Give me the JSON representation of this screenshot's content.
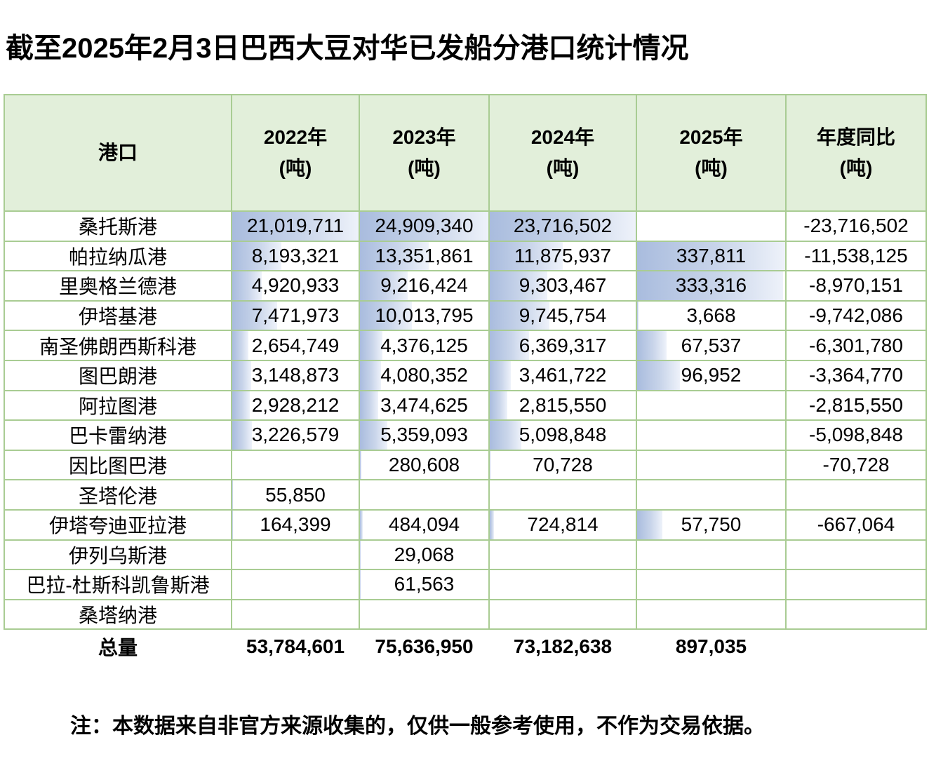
{
  "title": "截至2025年2月3日巴西大豆对华已发船分港口统计情况",
  "note": "注：本数据来自非官方来源收集的，仅供一般参考使用，不作为交易依据。",
  "colors": {
    "header_bg": "#e2efda",
    "grid_border": "#a9cc93",
    "databar_start": "#a9bcde",
    "databar_end": "#eef2fa"
  },
  "table": {
    "headers": [
      {
        "line1": "港口",
        "line2": ""
      },
      {
        "line1": "2022年",
        "line2": "(吨)"
      },
      {
        "line1": "2023年",
        "line2": "(吨)"
      },
      {
        "line1": "2024年",
        "line2": "(吨)"
      },
      {
        "line1": "2025年",
        "line2": "(吨)"
      },
      {
        "line1": "年度同比",
        "line2": "(吨)"
      }
    ],
    "rows": [
      {
        "port": "桑托斯港",
        "y2022": "21,019,711",
        "y2023": "24,909,340",
        "y2024": "23,716,502",
        "y2025": "",
        "yoy": "-23,716,502"
      },
      {
        "port": "帕拉纳瓜港",
        "y2022": "8,193,321",
        "y2023": "13,351,861",
        "y2024": "11,875,937",
        "y2025": "337,811",
        "yoy": "-11,538,125"
      },
      {
        "port": "里奥格兰德港",
        "y2022": "4,920,933",
        "y2023": "9,216,424",
        "y2024": "9,303,467",
        "y2025": "333,316",
        "yoy": "-8,970,151"
      },
      {
        "port": "伊塔基港",
        "y2022": "7,471,973",
        "y2023": "10,013,795",
        "y2024": "9,745,754",
        "y2025": "3,668",
        "yoy": "-9,742,086"
      },
      {
        "port": "南圣佛朗西斯科港",
        "y2022": "2,654,749",
        "y2023": "4,376,125",
        "y2024": "6,369,317",
        "y2025": "67,537",
        "yoy": "-6,301,780"
      },
      {
        "port": "图巴朗港",
        "y2022": "3,148,873",
        "y2023": "4,080,352",
        "y2024": "3,461,722",
        "y2025": "96,952",
        "yoy": "-3,364,770"
      },
      {
        "port": "阿拉图港",
        "y2022": "2,928,212",
        "y2023": "3,474,625",
        "y2024": "2,815,550",
        "y2025": "",
        "yoy": "-2,815,550"
      },
      {
        "port": "巴卡雷纳港",
        "y2022": "3,226,579",
        "y2023": "5,359,093",
        "y2024": "5,098,848",
        "y2025": "",
        "yoy": "-5,098,848"
      },
      {
        "port": "因比图巴港",
        "y2022": "",
        "y2023": "280,608",
        "y2024": "70,728",
        "y2025": "",
        "yoy": "-70,728"
      },
      {
        "port": "圣塔伦港",
        "y2022": "55,850",
        "y2023": "",
        "y2024": "",
        "y2025": "",
        "yoy": ""
      },
      {
        "port": "伊塔夸迪亚拉港",
        "y2022": "164,399",
        "y2023": "484,094",
        "y2024": "724,814",
        "y2025": "57,750",
        "yoy": "-667,064"
      },
      {
        "port": "伊列乌斯港",
        "y2022": "",
        "y2023": "29,068",
        "y2024": "",
        "y2025": "",
        "yoy": ""
      },
      {
        "port": "巴拉-杜斯科凯鲁斯港",
        "y2022": "",
        "y2023": "61,563",
        "y2024": "",
        "y2025": "",
        "yoy": ""
      },
      {
        "port": "桑塔纳港",
        "y2022": "",
        "y2023": "",
        "y2024": "",
        "y2025": "",
        "yoy": ""
      }
    ],
    "total": {
      "label": "总量",
      "y2022": "53,784,601",
      "y2023": "75,636,950",
      "y2024": "73,182,638",
      "y2025": "897,035",
      "yoy": ""
    }
  },
  "chart_data": {
    "type": "table",
    "title": "截至2025年2月3日巴西大豆对华已发船分港口统计情况",
    "columns": [
      "港口",
      "2022年(吨)",
      "2023年(吨)",
      "2024年(吨)",
      "2025年(吨)",
      "年度同比(吨)"
    ],
    "rows": [
      [
        "桑托斯港",
        21019711,
        24909340,
        23716502,
        null,
        -23716502
      ],
      [
        "帕拉纳瓜港",
        8193321,
        13351861,
        11875937,
        337811,
        -11538125
      ],
      [
        "里奥格兰德港",
        4920933,
        9216424,
        9303467,
        333316,
        -8970151
      ],
      [
        "伊塔基港",
        7471973,
        10013795,
        9745754,
        3668,
        -9742086
      ],
      [
        "南圣佛朗西斯科港",
        2654749,
        4376125,
        6369317,
        67537,
        -6301780
      ],
      [
        "图巴朗港",
        3148873,
        4080352,
        3461722,
        96952,
        -3364770
      ],
      [
        "阿拉图港",
        2928212,
        3474625,
        2815550,
        null,
        -2815550
      ],
      [
        "巴卡雷纳港",
        3226579,
        5359093,
        5098848,
        null,
        -5098848
      ],
      [
        "因比图巴港",
        null,
        280608,
        70728,
        null,
        -70728
      ],
      [
        "圣塔伦港",
        55850,
        null,
        null,
        null,
        null
      ],
      [
        "伊塔夸迪亚拉港",
        164399,
        484094,
        724814,
        57750,
        -667064
      ],
      [
        "伊列乌斯港",
        null,
        29068,
        null,
        null,
        null
      ],
      [
        "巴拉-杜斯科凯鲁斯港",
        null,
        61563,
        null,
        null,
        null
      ],
      [
        "桑塔纳港",
        null,
        null,
        null,
        null,
        null
      ]
    ],
    "total_row": [
      "总量",
      53784601,
      75636950,
      73182638,
      897035,
      null
    ],
    "notes": "year columns rendered with light-blue gradient data bars scaled to each column's maximum"
  }
}
